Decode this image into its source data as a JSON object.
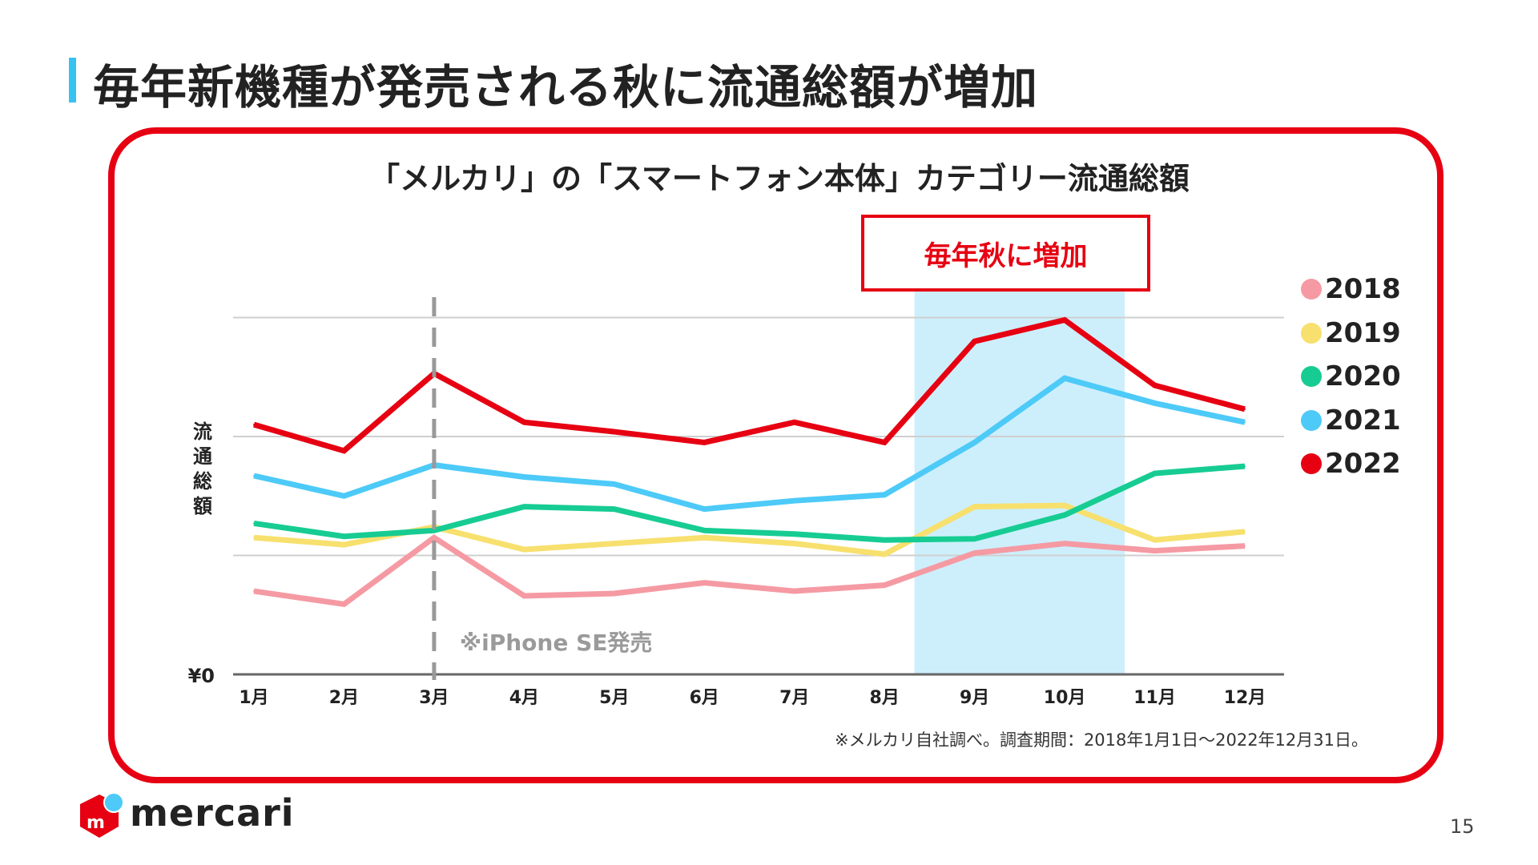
{
  "slide": {
    "title": "毎年新機種が発売される秋に流通総額が増加",
    "callout": "毎年秋に増加",
    "footnote": "※メルカリ自社調べ。調査期間：2018年1月1日〜2022年12月31日。",
    "page_number": "15",
    "logo_text": "mercari",
    "accent_color": "#e60012",
    "title_bar_color": "#36c3f2"
  },
  "chart_data": {
    "type": "line",
    "title": "「メルカリ」の「スマートフォン本体」カテゴリー流通総額",
    "ylabel": "流通総額",
    "xlabel": "",
    "y_tick_label": "¥0",
    "categories": [
      "1月",
      "2月",
      "3月",
      "4月",
      "5月",
      "6月",
      "7月",
      "8月",
      "9月",
      "10月",
      "11月",
      "12月"
    ],
    "ylim": [
      0,
      3
    ],
    "y_units_note_hidden": null,
    "grid": true,
    "legend": "right",
    "annotation": "※iPhone SE発売",
    "annotation_month": "3月",
    "highlight_months": [
      "9月",
      "10月"
    ],
    "series": [
      {
        "name": "2018",
        "color": "#f59aa3",
        "values": [
          0.7,
          0.59,
          1.15,
          0.66,
          0.68,
          0.77,
          0.7,
          0.75,
          1.02,
          1.1,
          1.04,
          1.08
        ]
      },
      {
        "name": "2019",
        "color": "#f7e06e",
        "values": [
          1.15,
          1.09,
          1.24,
          1.05,
          1.1,
          1.15,
          1.1,
          1.01,
          1.41,
          1.42,
          1.13,
          1.2
        ]
      },
      {
        "name": "2020",
        "color": "#17cc92",
        "values": [
          1.27,
          1.16,
          1.21,
          1.41,
          1.39,
          1.21,
          1.18,
          1.13,
          1.14,
          1.34,
          1.69,
          1.75
        ]
      },
      {
        "name": "2021",
        "color": "#4dcaf8",
        "values": [
          1.67,
          1.5,
          1.76,
          1.66,
          1.6,
          1.39,
          1.46,
          1.51,
          1.95,
          2.49,
          2.28,
          2.12
        ]
      },
      {
        "name": "2022",
        "color": "#e60012",
        "values": [
          2.1,
          1.88,
          2.53,
          2.12,
          2.04,
          1.95,
          2.12,
          1.95,
          2.8,
          2.98,
          2.43,
          2.23
        ]
      }
    ]
  }
}
